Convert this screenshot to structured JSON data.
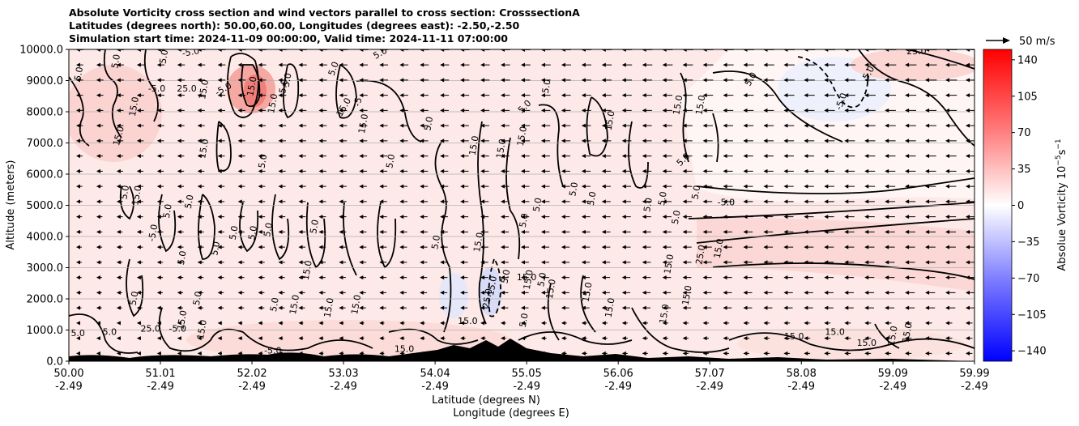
{
  "titles": {
    "line1": "Absolute Vorticity cross section and wind vectors parallel to cross section: CrosssectionA",
    "line2": "Latitudes (degrees north): 50.00,60.00, Longitudes (degrees east): -2.50,-2.50",
    "line3": "Simulation start time: 2024-11-09 00:00:00, Valid time: 2024-11-11 07:00:00"
  },
  "chart_data": {
    "type": "heatmap",
    "description_series": "absolute vorticity filled contours with black contour lines and wind vector arrows",
    "ylabel": "Altitude (meters)",
    "xlabel_line1": "Latitude (degrees N)",
    "xlabel_line2": "Longitude (degrees E)",
    "ylim": [
      0,
      10000
    ],
    "y_ticks": [
      0,
      1000,
      2000,
      3000,
      4000,
      5000,
      6000,
      7000,
      8000,
      9000,
      10000
    ],
    "y_tick_labels": [
      "0.0",
      "1000.0",
      "2000.0",
      "3000.0",
      "4000.0",
      "5000.0",
      "6000.0",
      "7000.0",
      "8000.0",
      "9000.0",
      "10000.0"
    ],
    "xlim": [
      50.0,
      59.99
    ],
    "x_ticks": [
      50.0,
      51.01,
      52.02,
      53.03,
      54.04,
      55.05,
      56.06,
      57.07,
      58.08,
      59.09,
      59.99
    ],
    "x_tick_labels": [
      {
        "lat": "50.00",
        "lon": "-2.49"
      },
      {
        "lat": "51.01",
        "lon": "-2.49"
      },
      {
        "lat": "52.02",
        "lon": "-2.49"
      },
      {
        "lat": "53.03",
        "lon": "-2.49"
      },
      {
        "lat": "54.04",
        "lon": "-2.49"
      },
      {
        "lat": "55.05",
        "lon": "-2.49"
      },
      {
        "lat": "56.06",
        "lon": "-2.49"
      },
      {
        "lat": "57.07",
        "lon": "-2.49"
      },
      {
        "lat": "58.08",
        "lon": "-2.49"
      },
      {
        "lat": "59.09",
        "lon": "-2.49"
      },
      {
        "lat": "59.99",
        "lon": "-2.49"
      }
    ],
    "grid": "horizontal",
    "colorbar": {
      "label": "Absolue Vorticity 10$^{-5}$s$^{-1}$",
      "label_main": "Absolue Vorticity 10",
      "label_exp1": "−5",
      "label_mid": "s",
      "label_exp2": "−1",
      "range": [
        -150,
        150
      ],
      "ticks": [
        140,
        105,
        70,
        35,
        0,
        -35,
        -70,
        -105,
        -140
      ],
      "tick_labels": [
        "140",
        "105",
        "70",
        "35",
        "0",
        "−35",
        "−70",
        "−105",
        "−140"
      ],
      "colors": {
        "low": "#0000ff",
        "mid": "#ffffff",
        "high": "#ff0000"
      }
    },
    "wind_key": {
      "label": "50 m/s",
      "value": 50
    },
    "contour_labels": [
      {
        "text": "5.0",
        "x": 50.55,
        "y": 9600,
        "rot": -80
      },
      {
        "text": "15.0",
        "x": 50.75,
        "y": 8150,
        "rot": -80
      },
      {
        "text": "15.0",
        "x": 50.58,
        "y": 7200,
        "rot": -75
      },
      {
        "text": "5.0",
        "x": 50.14,
        "y": 9200,
        "rot": -80
      },
      {
        "text": "-5.0",
        "x": 50.97,
        "y": 8650,
        "rot": 0
      },
      {
        "text": "25.0",
        "x": 51.3,
        "y": 8650,
        "rot": 0
      },
      {
        "text": "15.0",
        "x": 51.52,
        "y": 8700,
        "rot": -80
      },
      {
        "text": "-5.0",
        "x": 51.72,
        "y": 8650,
        "rot": -30
      },
      {
        "text": "5.0",
        "x": 51.08,
        "y": 9750,
        "rot": -80
      },
      {
        "text": "-5.0",
        "x": 51.35,
        "y": 9820,
        "rot": -10
      },
      {
        "text": "15.0",
        "x": 52.05,
        "y": 8800,
        "rot": -80
      },
      {
        "text": "5.0",
        "x": 52.4,
        "y": 8800,
        "rot": -80
      },
      {
        "text": "15.0",
        "x": 52.28,
        "y": 8250,
        "rot": -80
      },
      {
        "text": "5.0",
        "x": 52.44,
        "y": 9000,
        "rot": -80
      },
      {
        "text": "15.0",
        "x": 51.52,
        "y": 6800,
        "rot": -80
      },
      {
        "text": "5.0",
        "x": 52.17,
        "y": 6400,
        "rot": -80
      },
      {
        "text": "5.0",
        "x": 50.65,
        "y": 5400,
        "rot": -80
      },
      {
        "text": "15.0",
        "x": 50.78,
        "y": 5300,
        "rot": -80
      },
      {
        "text": "5.0",
        "x": 51.12,
        "y": 4800,
        "rot": -80
      },
      {
        "text": "-5.0",
        "x": 50.96,
        "y": 4100,
        "rot": -80
      },
      {
        "text": "5.0",
        "x": 51.36,
        "y": 5100,
        "rot": -80
      },
      {
        "text": "5.0",
        "x": 51.28,
        "y": 3300,
        "rot": -80
      },
      {
        "text": "5.0",
        "x": 51.65,
        "y": 3600,
        "rot": -80
      },
      {
        "text": "5.0",
        "x": 51.85,
        "y": 4100,
        "rot": -80
      },
      {
        "text": "5.0",
        "x": 52.06,
        "y": 4100,
        "rot": -80
      },
      {
        "text": "5.0",
        "x": 52.23,
        "y": 4200,
        "rot": -80
      },
      {
        "text": "5.0",
        "x": 52.74,
        "y": 4300,
        "rot": -80
      },
      {
        "text": "15.0",
        "x": 52.66,
        "y": 2900,
        "rot": -80
      },
      {
        "text": "5.0",
        "x": 50.75,
        "y": 2000,
        "rot": -80
      },
      {
        "text": "5.0",
        "x": 51.45,
        "y": 2000,
        "rot": -80
      },
      {
        "text": "15.0",
        "x": 51.28,
        "y": 1300,
        "rot": -80
      },
      {
        "text": "5.0",
        "x": 52.3,
        "y": 1800,
        "rot": -80
      },
      {
        "text": "15.0",
        "x": 52.52,
        "y": 1800,
        "rot": -80
      },
      {
        "text": "15.0",
        "x": 52.9,
        "y": 1700,
        "rot": -80
      },
      {
        "text": "15.0",
        "x": 53.2,
        "y": 1800,
        "rot": -80
      },
      {
        "text": "5.0",
        "x": 52.95,
        "y": 9350,
        "rot": -70
      },
      {
        "text": "5.0",
        "x": 53.45,
        "y": 9800,
        "rot": -30
      },
      {
        "text": "15.0",
        "x": 53.06,
        "y": 8100,
        "rot": -60
      },
      {
        "text": "-5",
        "x": 53.22,
        "y": 8300,
        "rot": -80
      },
      {
        "text": "15.0",
        "x": 53.28,
        "y": 7600,
        "rot": -80
      },
      {
        "text": "5.0",
        "x": 54.0,
        "y": 7600,
        "rot": -80
      },
      {
        "text": "5.0",
        "x": 53.58,
        "y": 6400,
        "rot": -80
      },
      {
        "text": "15.0",
        "x": 54.5,
        "y": 6900,
        "rot": -80
      },
      {
        "text": "15.0",
        "x": 54.8,
        "y": 6800,
        "rot": -80
      },
      {
        "text": "5.0",
        "x": 55.05,
        "y": 8100,
        "rot": -45
      },
      {
        "text": "15.0",
        "x": 55.03,
        "y": 7200,
        "rot": -80
      },
      {
        "text": "5.0",
        "x": 55.3,
        "y": 8800,
        "rot": -80
      },
      {
        "text": "5.0",
        "x": 55.2,
        "y": 5000,
        "rot": -80
      },
      {
        "text": "5.0",
        "x": 55.05,
        "y": 4500,
        "rot": -80
      },
      {
        "text": "5.0",
        "x": 54.08,
        "y": 3800,
        "rot": -80
      },
      {
        "text": "15.0",
        "x": 54.55,
        "y": 3800,
        "rot": -80
      },
      {
        "text": "15.0",
        "x": 54.7,
        "y": 2400,
        "rot": -80
      },
      {
        "text": "25.0",
        "x": 54.65,
        "y": 2000,
        "rot": -80
      },
      {
        "text": "5.0",
        "x": 55.25,
        "y": 2600,
        "rot": -80
      },
      {
        "text": "15.0",
        "x": 55.1,
        "y": 2600,
        "rot": -80
      },
      {
        "text": "5.0",
        "x": 54.85,
        "y": 2700,
        "rot": -80
      },
      {
        "text": "15.0",
        "x": 55.05,
        "y": 2600,
        "rot": 0
      },
      {
        "text": "15.0",
        "x": 55.35,
        "y": 2300,
        "rot": -80
      },
      {
        "text": "5.0",
        "x": 55.05,
        "y": 1300,
        "rot": -80
      },
      {
        "text": "15.0",
        "x": 54.4,
        "y": 1200,
        "rot": 0
      },
      {
        "text": "15.0",
        "x": 53.7,
        "y": 300,
        "rot": 0
      },
      {
        "text": "15.0",
        "x": 56.0,
        "y": 7700,
        "rot": -80
      },
      {
        "text": "15.0",
        "x": 56.75,
        "y": 8200,
        "rot": -80
      },
      {
        "text": "15.0",
        "x": 57.0,
        "y": 8200,
        "rot": -80
      },
      {
        "text": "5.0",
        "x": 56.8,
        "y": 6400,
        "rot": -45
      },
      {
        "text": "5.0",
        "x": 56.58,
        "y": 5200,
        "rot": -80
      },
      {
        "text": "5.0",
        "x": 56.42,
        "y": 5000,
        "rot": -80
      },
      {
        "text": "5.0",
        "x": 56.95,
        "y": 5400,
        "rot": -80
      },
      {
        "text": "-5.0",
        "x": 57.25,
        "y": 5000,
        "rot": 0
      },
      {
        "text": "5.0",
        "x": 56.73,
        "y": 4600,
        "rot": -80
      },
      {
        "text": "5.0",
        "x": 55.8,
        "y": 5200,
        "rot": -80
      },
      {
        "text": "5.0",
        "x": 55.6,
        "y": 5500,
        "rot": -80
      },
      {
        "text": "15.0",
        "x": 57.2,
        "y": 3600,
        "rot": -80
      },
      {
        "text": "25.0",
        "x": 57.0,
        "y": 3400,
        "rot": -80
      },
      {
        "text": "15.0",
        "x": 56.65,
        "y": 3100,
        "rot": -80
      },
      {
        "text": "15.0",
        "x": 55.75,
        "y": 2200,
        "rot": -80
      },
      {
        "text": "15.0",
        "x": 56.0,
        "y": 1700,
        "rot": -80
      },
      {
        "text": "15.0",
        "x": 56.85,
        "y": 2100,
        "rot": -80
      },
      {
        "text": "15.0",
        "x": 56.6,
        "y": 1500,
        "rot": -80
      },
      {
        "text": "5.0",
        "x": 57.55,
        "y": 9000,
        "rot": -60
      },
      {
        "text": "-5.0",
        "x": 58.55,
        "y": 8300,
        "rot": -70
      },
      {
        "text": "5.0",
        "x": 58.85,
        "y": 9200,
        "rot": -60
      },
      {
        "text": "25.0",
        "x": 59.35,
        "y": 9850,
        "rot": 0
      },
      {
        "text": "15.0",
        "x": 58.0,
        "y": 700,
        "rot": 0
      },
      {
        "text": "15.0",
        "x": 58.45,
        "y": 850,
        "rot": 0
      },
      {
        "text": "15.0",
        "x": 58.8,
        "y": 500,
        "rot": 0
      },
      {
        "text": "15.0",
        "x": 59.12,
        "y": 800,
        "rot": -80
      },
      {
        "text": "15.0",
        "x": 59.28,
        "y": 900,
        "rot": -80
      },
      {
        "text": "5.0",
        "x": 50.45,
        "y": 850,
        "rot": 0
      },
      {
        "text": "25.0",
        "x": 50.9,
        "y": 950,
        "rot": 0
      },
      {
        "text": "-5.0",
        "x": 51.2,
        "y": 950,
        "rot": 0
      },
      {
        "text": "-5.0",
        "x": 52.25,
        "y": 250,
        "rot": 0
      },
      {
        "text": "15.0",
        "x": 51.5,
        "y": 1000,
        "rot": -80
      },
      {
        "text": "5.0",
        "x": 50.1,
        "y": 800,
        "rot": 0
      }
    ]
  }
}
